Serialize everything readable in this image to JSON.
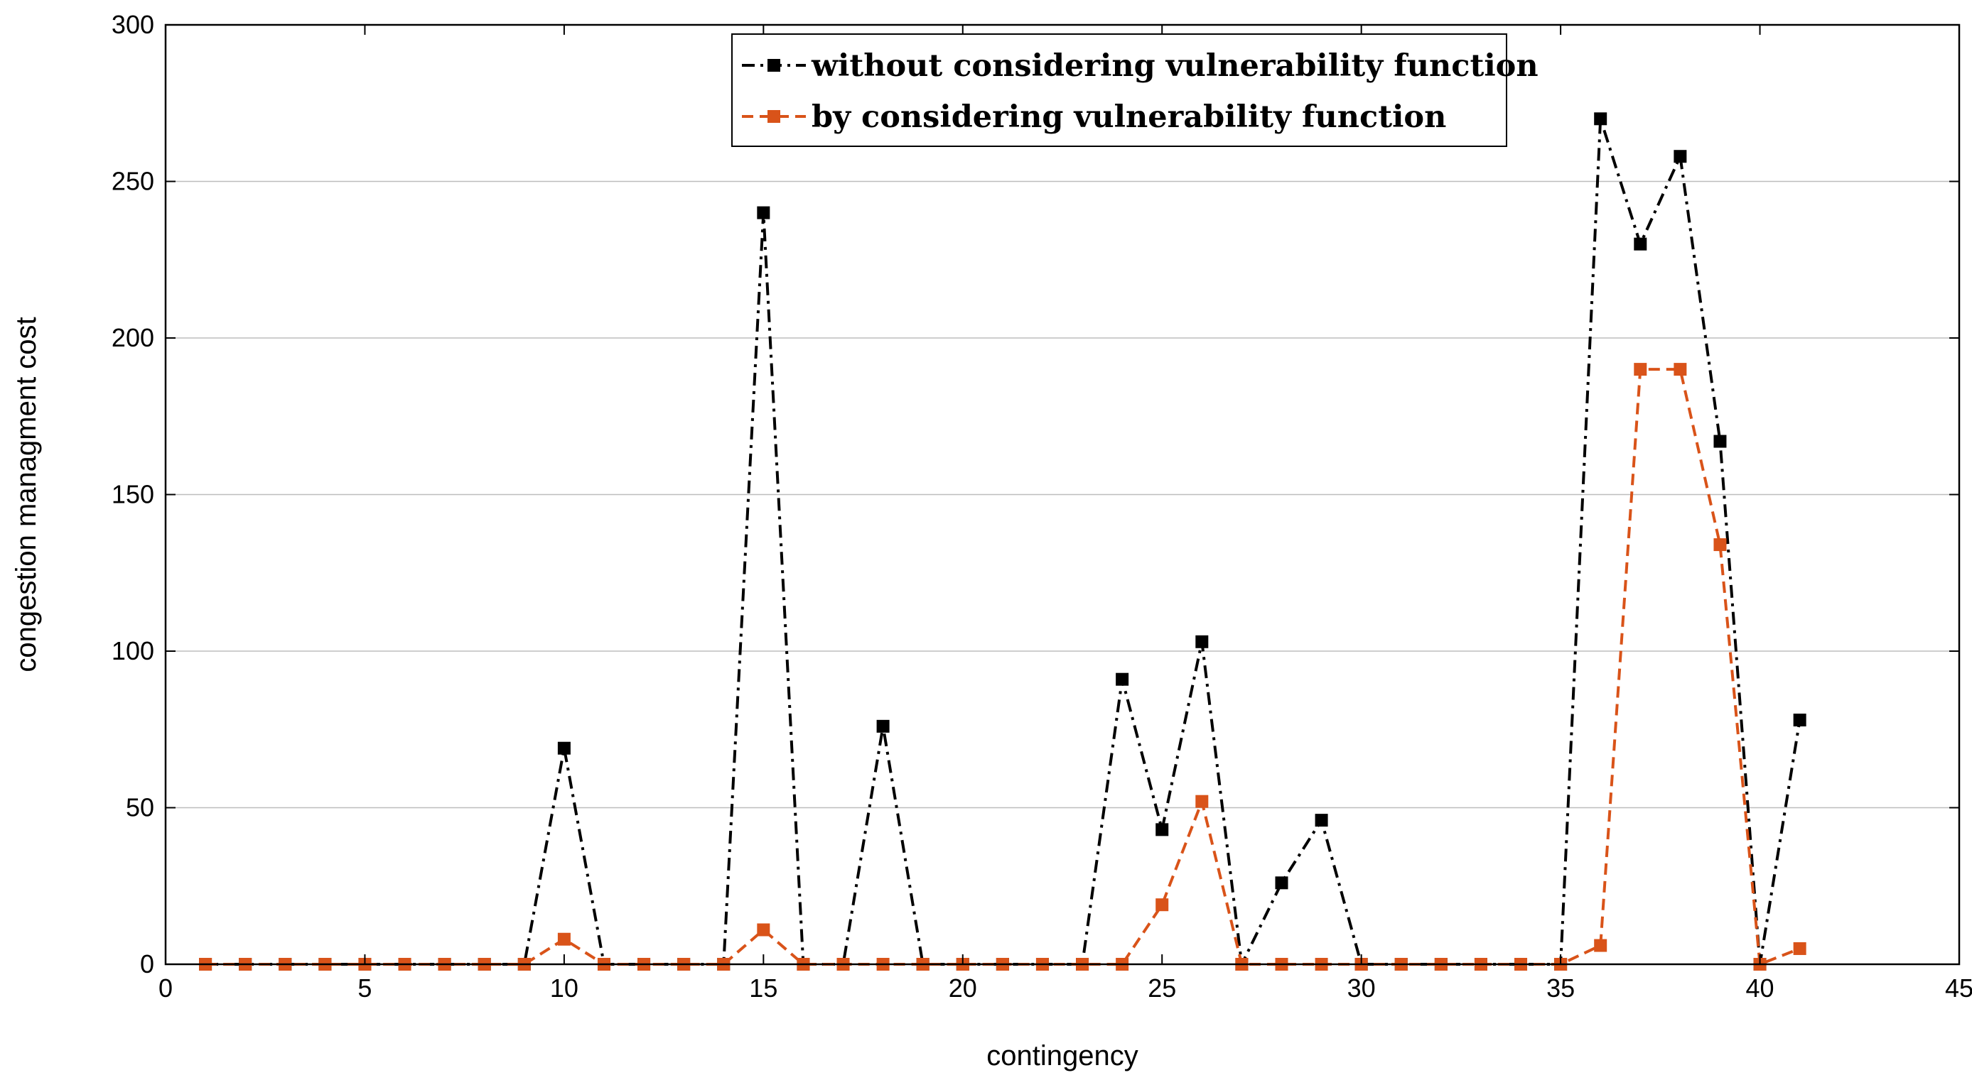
{
  "chart_data": {
    "type": "line",
    "xlabel": "contingency",
    "ylabel": "congestion managment cost",
    "xlim": [
      0,
      45
    ],
    "ylim": [
      0,
      300
    ],
    "xticks": [
      0,
      5,
      10,
      15,
      20,
      25,
      30,
      35,
      40,
      45
    ],
    "yticks": [
      0,
      50,
      100,
      150,
      200,
      250,
      300
    ],
    "x": [
      1,
      2,
      3,
      4,
      5,
      6,
      7,
      8,
      9,
      10,
      11,
      12,
      13,
      14,
      15,
      16,
      17,
      18,
      19,
      20,
      21,
      22,
      23,
      24,
      25,
      26,
      27,
      28,
      29,
      30,
      31,
      32,
      33,
      34,
      35,
      36,
      37,
      38,
      39,
      40,
      41
    ],
    "series": [
      {
        "name": "without considering vulnerability function",
        "color": "#000000",
        "dash": "dashdot",
        "values": [
          0,
          0,
          0,
          0,
          0,
          0,
          0,
          0,
          0,
          69,
          0,
          0,
          0,
          0,
          240,
          0,
          0,
          76,
          0,
          0,
          0,
          0,
          0,
          91,
          43,
          103,
          0,
          26,
          46,
          0,
          0,
          0,
          0,
          0,
          0,
          270,
          230,
          258,
          167,
          0,
          78
        ]
      },
      {
        "name": "by considering vulnerability function",
        "color": "#D95319",
        "dash": "dash",
        "values": [
          0,
          0,
          0,
          0,
          0,
          0,
          0,
          0,
          0,
          8,
          0,
          0,
          0,
          0,
          11,
          0,
          0,
          0,
          0,
          0,
          0,
          0,
          0,
          0,
          19,
          52,
          0,
          0,
          0,
          0,
          0,
          0,
          0,
          0,
          0,
          6,
          190,
          190,
          134,
          0,
          5
        ]
      }
    ],
    "legend_position": "top-center"
  }
}
